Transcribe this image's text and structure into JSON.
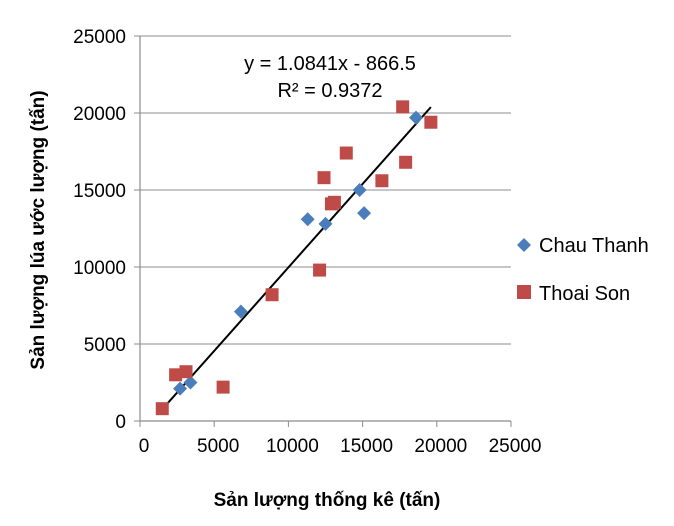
{
  "chart_data": {
    "type": "scatter",
    "xlabel": "Sản lượng thống kê  (tấn)",
    "ylabel": "Sản lượng lúa ước lượng  (tấn)",
    "xlim": [
      0,
      25000
    ],
    "ylim": [
      0,
      25000
    ],
    "x_ticks": [
      "0",
      "5000",
      "10000",
      "15000",
      "20000",
      "25000"
    ],
    "y_ticks": [
      "0",
      "5000",
      "10000",
      "15000",
      "20000",
      "25000"
    ],
    "grid": "horizontal",
    "legend_position": "right",
    "series": [
      {
        "name": "Chau Thanh",
        "marker": "diamond",
        "color": "#4a7ebb",
        "points": [
          [
            2700,
            2100
          ],
          [
            3400,
            2500
          ],
          [
            6800,
            7100
          ],
          [
            11300,
            13100
          ],
          [
            12500,
            12800
          ],
          [
            14800,
            15000
          ],
          [
            15100,
            13500
          ],
          [
            18600,
            19700
          ]
        ]
      },
      {
        "name": "Thoai Son",
        "marker": "square",
        "color": "#be4b48",
        "points": [
          [
            1500,
            800
          ],
          [
            2400,
            3000
          ],
          [
            3100,
            3200
          ],
          [
            5600,
            2200
          ],
          [
            8900,
            8200
          ],
          [
            12100,
            9800
          ],
          [
            12400,
            15800
          ],
          [
            12900,
            14100
          ],
          [
            13100,
            14200
          ],
          [
            13900,
            17400
          ],
          [
            16300,
            15600
          ],
          [
            17700,
            20400
          ],
          [
            17900,
            16800
          ],
          [
            19600,
            19400
          ]
        ]
      }
    ],
    "trendline": {
      "slope": 1.0841,
      "intercept": -866.5,
      "x_range": [
        1500,
        19600
      ],
      "color": "#000000"
    },
    "annotations": {
      "equation": "y = 1.0841x - 866.5",
      "r_squared": "R² = 0.9372"
    }
  }
}
